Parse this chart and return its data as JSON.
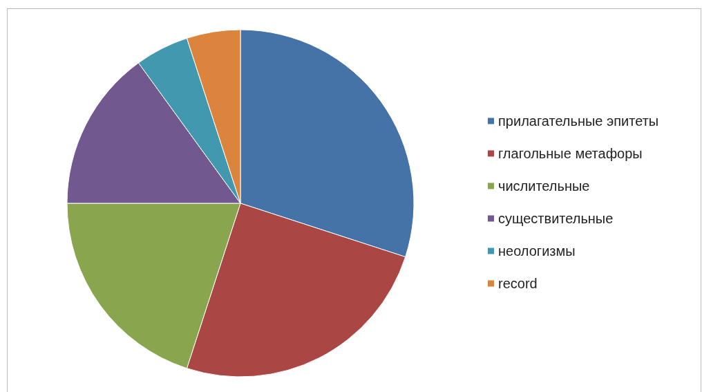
{
  "chart_data": {
    "type": "pie",
    "categories": [
      "прилагательные эпитеты",
      "глагольные метафоры",
      "числительные",
      "существительные",
      "неологизмы",
      "record"
    ],
    "values": [
      30,
      25,
      20,
      15,
      5,
      5
    ],
    "colors": [
      "#4572a7",
      "#aa4643",
      "#89a54e",
      "#71588f",
      "#4198af",
      "#db843d"
    ],
    "legend": "right"
  }
}
